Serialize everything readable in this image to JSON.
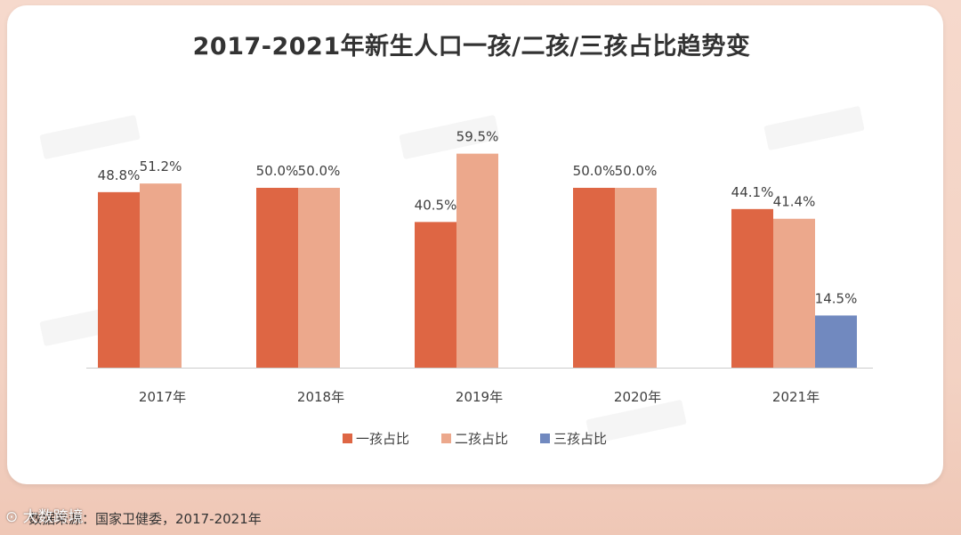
{
  "chart_data": {
    "type": "bar",
    "title": "2017-2021年新生人口一孩/二孩/三孩占比趋势变",
    "categories": [
      "2017年",
      "2018年",
      "2019年",
      "2020年",
      "2021年"
    ],
    "series": [
      {
        "name": "一孩占比",
        "values": [
          48.8,
          50.0,
          40.5,
          50.0,
          44.1
        ],
        "labels": [
          "48.8%",
          "50.0%",
          "40.5%",
          "50.0%",
          "44.1%"
        ],
        "color": "#de6644"
      },
      {
        "name": "二孩占比",
        "values": [
          51.2,
          50.0,
          59.5,
          50.0,
          41.4
        ],
        "labels": [
          "51.2%",
          "50.0%",
          "59.5%",
          "50.0%",
          "41.4%"
        ],
        "color": "#eca88c"
      },
      {
        "name": "三孩占比",
        "values": [
          null,
          null,
          null,
          null,
          14.5
        ],
        "labels": [
          "",
          "",
          "",
          "",
          "14.5%"
        ],
        "color": "#7189bf"
      }
    ],
    "ylim": [
      0,
      100
    ],
    "grid": false,
    "legend_position": "bottom"
  },
  "footer": {
    "source": "数据来源：国家卫健委，2017-2021年",
    "watermark": "大数跨境"
  }
}
